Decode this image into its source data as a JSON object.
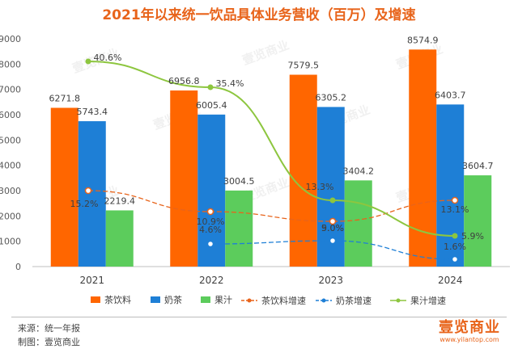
{
  "title": "2021年以来统一饮品具体业务营收（百万）及增速",
  "footer": {
    "source_text": "来源：统一年报",
    "maker_text": "制图：壹览商业",
    "brand_name": "壹览商业",
    "brand_url": "www.yilantop.com",
    "watermark_text": "壹览商业"
  },
  "colors": {
    "title": "#e8641b",
    "tea_drinks": "#ff6600",
    "milk_tea": "#1e7fd6",
    "juice": "#5ccc5c",
    "tea_growth": "#e8641b",
    "milk_growth": "#1e7fd6",
    "juice_growth": "#8dc63f"
  },
  "chart_data": {
    "type": "bar",
    "categories": [
      "2021",
      "2022",
      "2023",
      "2024"
    ],
    "ylim": [
      0,
      9000
    ],
    "yticks": [
      0,
      1000,
      2000,
      3000,
      4000,
      5000,
      6000,
      7000,
      8000,
      9000
    ],
    "grid": false,
    "legend_position": "bottom",
    "xlabel": "",
    "ylabel": "",
    "series": [
      {
        "name": "茶饮料",
        "values": [
          6271.8,
          6956.8,
          7579.5,
          8574.9
        ],
        "labels": [
          "6271.8",
          "6956.8",
          "7579.5",
          "8574.9"
        ]
      },
      {
        "name": "奶茶",
        "values": [
          5743.4,
          6005.4,
          6305.2,
          6403.7
        ],
        "labels": [
          "5743.4",
          "6005.4",
          "6305.2",
          "6403.7"
        ]
      },
      {
        "name": "果汁",
        "values": [
          2219.4,
          3004.5,
          3404.2,
          3604.7
        ],
        "labels": [
          "2219.4",
          "3004.5",
          "3404.2",
          "3604.7"
        ]
      }
    ],
    "growth_lines": [
      {
        "name": "茶饮料增速",
        "labels": [
          "15.2%",
          "10.9%",
          "9.0%",
          "13.1%"
        ],
        "style": "dashed"
      },
      {
        "name": "奶茶增速",
        "labels": [
          null,
          "4.6%",
          "5.0%",
          "1.6%"
        ],
        "style": "dashed"
      },
      {
        "name": "果汁增速",
        "labels": [
          "40.6%",
          "35.4%",
          "13.3%",
          "5.9%"
        ],
        "style": "solid"
      }
    ]
  }
}
